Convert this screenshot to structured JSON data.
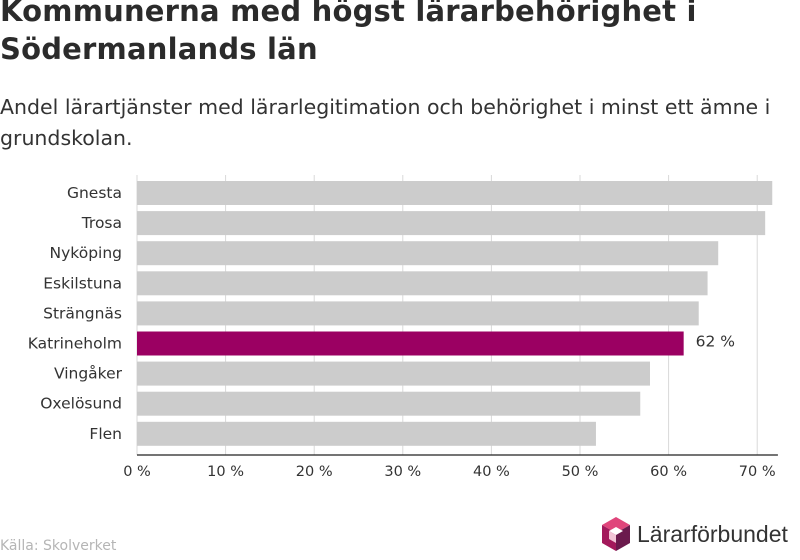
{
  "title": "Kommunerna med högst lärarbehörighet i Södermanlands län",
  "subtitle": "Andel lärartjänster med lärarlegitimation och behörighet i minst ett ämne i grundskolan.",
  "source": "Källa: Skolverket",
  "logo_text": "Lärarförbundet",
  "chart_data": {
    "type": "bar",
    "orientation": "horizontal",
    "categories": [
      "Gnesta",
      "Trosa",
      "Nyköping",
      "Eskilstuna",
      "Strängnäs",
      "Katrineholm",
      "Vingåker",
      "Oxelösund",
      "Flen"
    ],
    "values": [
      71.7,
      70.9,
      65.6,
      64.4,
      63.4,
      61.7,
      57.9,
      56.8,
      51.8
    ],
    "highlight": "Katrineholm",
    "highlight_label": "62 %",
    "xlim": [
      0,
      72
    ],
    "xticks": [
      0,
      10,
      20,
      30,
      40,
      50,
      60,
      70
    ],
    "tick_suffix": " %",
    "grid": true,
    "colors": {
      "bar": "#cccccc",
      "highlight": "#9b0062",
      "grid": "#d9d9d9",
      "axis": "#222222"
    }
  }
}
